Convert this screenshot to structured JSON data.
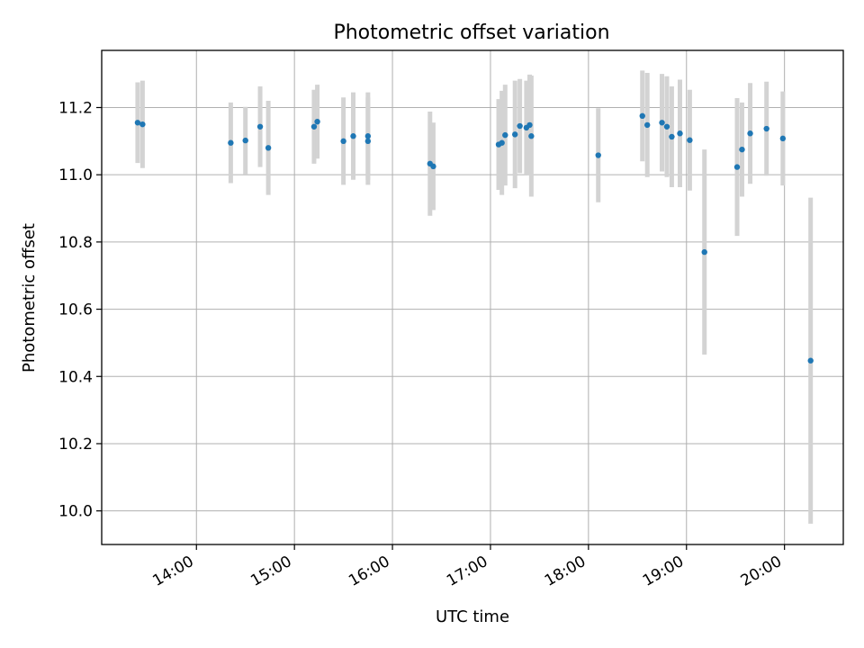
{
  "chart_data": {
    "type": "scatter",
    "title": "Photometric offset variation",
    "xlabel": "UTC time",
    "ylabel": "Photometric offset",
    "x_tick_labels": [
      "14:00",
      "15:00",
      "16:00",
      "17:00",
      "18:00",
      "19:00",
      "20:00"
    ],
    "y_tick_labels": [
      "10.0",
      "10.2",
      "10.4",
      "10.6",
      "10.8",
      "11.0",
      "11.2"
    ],
    "xlim": [
      "13:02",
      "20:36"
    ],
    "ylim": [
      9.9,
      11.37
    ],
    "grid": true,
    "colors": {
      "points": "#1f77b4",
      "error_bars": "#d3d3d3",
      "grid": "#b0b0b0"
    },
    "points": [
      {
        "x": "13:24",
        "y": 11.155,
        "err": 0.12
      },
      {
        "x": "13:27",
        "y": 11.15,
        "err": 0.13
      },
      {
        "x": "14:21",
        "y": 11.095,
        "err": 0.12
      },
      {
        "x": "14:30",
        "y": 11.102,
        "err": 0.1
      },
      {
        "x": "14:39",
        "y": 11.143,
        "err": 0.12
      },
      {
        "x": "14:44",
        "y": 11.08,
        "err": 0.14
      },
      {
        "x": "15:12",
        "y": 11.143,
        "err": 0.11
      },
      {
        "x": "15:14",
        "y": 11.158,
        "err": 0.11
      },
      {
        "x": "15:30",
        "y": 11.1,
        "err": 0.13
      },
      {
        "x": "15:36",
        "y": 11.115,
        "err": 0.13
      },
      {
        "x": "15:45",
        "y": 11.1,
        "err": 0.13
      },
      {
        "x": "15:45",
        "y": 11.115,
        "err": 0.13
      },
      {
        "x": "16:23",
        "y": 11.033,
        "err": 0.155
      },
      {
        "x": "16:25",
        "y": 11.025,
        "err": 0.13
      },
      {
        "x": "17:05",
        "y": 11.09,
        "err": 0.135
      },
      {
        "x": "17:07",
        "y": 11.095,
        "err": 0.155
      },
      {
        "x": "17:09",
        "y": 11.118,
        "err": 0.15
      },
      {
        "x": "17:15",
        "y": 11.12,
        "err": 0.16
      },
      {
        "x": "17:18",
        "y": 11.145,
        "err": 0.14
      },
      {
        "x": "17:22",
        "y": 11.14,
        "err": 0.14
      },
      {
        "x": "17:24",
        "y": 11.148,
        "err": 0.15
      },
      {
        "x": "17:25",
        "y": 11.115,
        "err": 0.18
      },
      {
        "x": "18:06",
        "y": 11.058,
        "err": 0.14
      },
      {
        "x": "18:33",
        "y": 11.175,
        "err": 0.135
      },
      {
        "x": "18:36",
        "y": 11.148,
        "err": 0.155
      },
      {
        "x": "18:45",
        "y": 11.155,
        "err": 0.145
      },
      {
        "x": "18:48",
        "y": 11.143,
        "err": 0.15
      },
      {
        "x": "18:51",
        "y": 11.113,
        "err": 0.15
      },
      {
        "x": "18:56",
        "y": 11.123,
        "err": 0.16
      },
      {
        "x": "19:02",
        "y": 11.103,
        "err": 0.15
      },
      {
        "x": "19:11",
        "y": 10.77,
        "err": 0.305
      },
      {
        "x": "19:31",
        "y": 11.023,
        "err": 0.205
      },
      {
        "x": "19:34",
        "y": 11.075,
        "err": 0.14
      },
      {
        "x": "19:39",
        "y": 11.123,
        "err": 0.15
      },
      {
        "x": "19:49",
        "y": 11.137,
        "err": 0.14
      },
      {
        "x": "19:59",
        "y": 11.108,
        "err": 0.14
      },
      {
        "x": "20:16",
        "y": 10.447,
        "err": 0.485
      }
    ]
  }
}
